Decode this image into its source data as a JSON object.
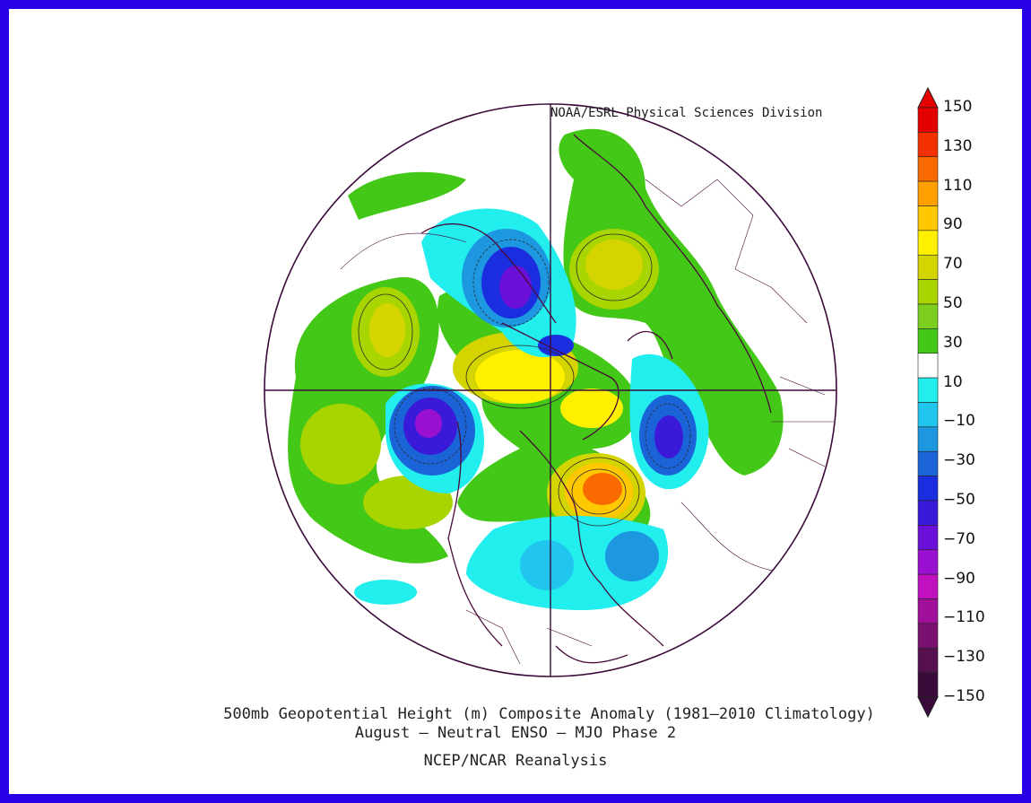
{
  "credit": "NOAA/ESRL Physical Sciences Division",
  "caption": {
    "line1": "500mb Geopotential Height (m) Composite Anomaly (1981–2010 Climatology)",
    "line2": "August – Neutral ENSO – MJO Phase 2",
    "line3": "NCEP/NCAR Reanalysis"
  },
  "colorbar": {
    "labels": [
      "150",
      "130",
      "110",
      "90",
      "70",
      "50",
      "30",
      "10",
      "−10",
      "−30",
      "−50",
      "−70",
      "−90",
      "−110",
      "−130",
      "−150"
    ],
    "colors": [
      "#e50000",
      "#f23000",
      "#f86a00",
      "#ffa000",
      "#ffc800",
      "#fff000",
      "#d4d400",
      "#a8d400",
      "#7ccd1e",
      "#44c818",
      "#ffffff",
      "#22eeee",
      "#20c6ee",
      "#1d98e0",
      "#1a64d8",
      "#1a2ee0",
      "#3a1ad8",
      "#6a10d8",
      "#9a10d0",
      "#c010c0",
      "#a0109a",
      "#7a1070",
      "#561050",
      "#3a0a3a"
    ],
    "arrow_top_color": "#e50000",
    "arrow_bottom_color": "#3a0a3a"
  },
  "frame_color": "#2a00e6"
}
